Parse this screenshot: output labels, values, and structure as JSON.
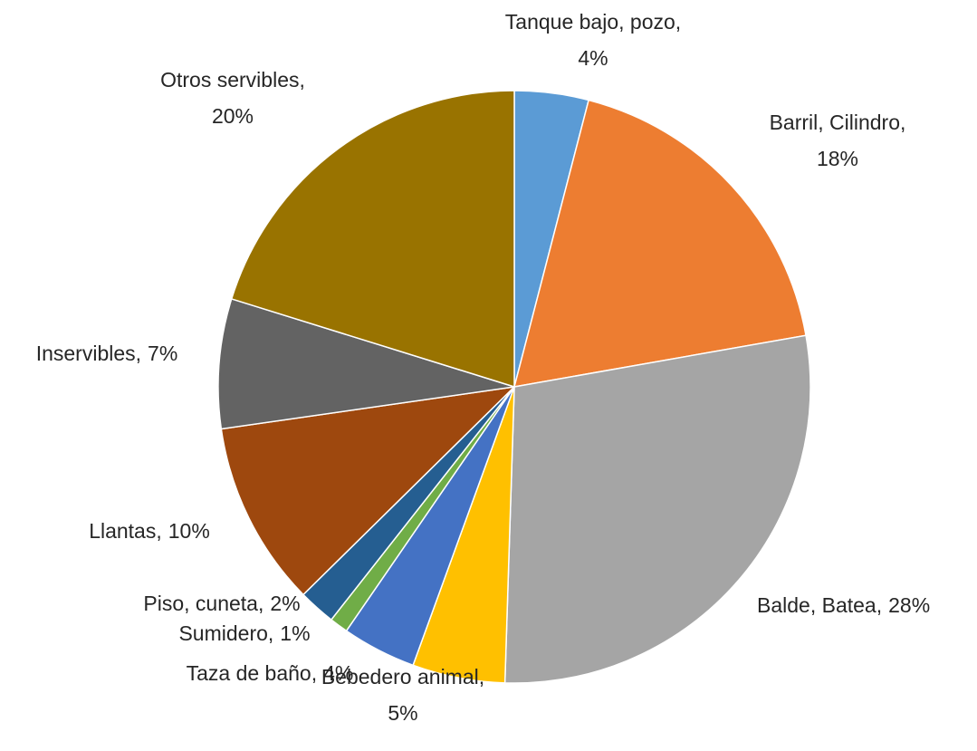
{
  "chart_data": {
    "type": "pie",
    "categories": [
      "Tanque bajo, pozo,",
      "Barril, Cilindro,",
      "Balde, Batea,",
      "Bebedero animal,",
      "Taza de baño,",
      "Sumidero,",
      "Piso, cuneta,",
      "Llantas,",
      "Inservibles,",
      "Otros servibles,"
    ],
    "values": [
      4,
      18,
      28,
      5,
      4,
      1,
      2,
      10,
      7,
      20
    ],
    "value_labels": [
      "4%",
      "18%",
      "28%",
      "5%",
      "4%",
      "1%",
      "2%",
      "10%",
      "7%",
      "20%"
    ],
    "colors": [
      "#5b9bd5",
      "#ed7d31",
      "#a5a5a5",
      "#ffc000",
      "#4472c4",
      "#70ad47",
      "#255e91",
      "#9e480e",
      "#636363",
      "#997300"
    ]
  }
}
